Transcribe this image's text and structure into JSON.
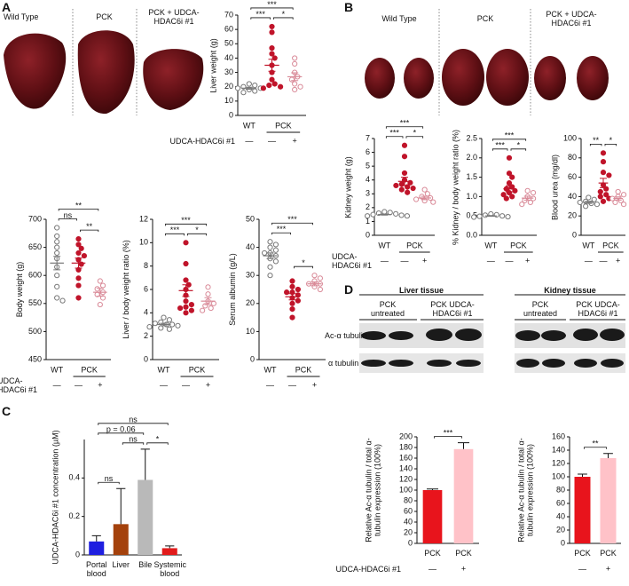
{
  "panel_A": {
    "label": "A",
    "photo_labels": [
      "Wild Type",
      "PCK",
      "PCK + UDCA-HDAC6i #1"
    ]
  },
  "panel_B": {
    "label": "B",
    "photo_labels": [
      "Wild Type",
      "PCK",
      "PCK + UDCA-HDAC6i #1"
    ]
  },
  "panel_C": {
    "label": "C"
  },
  "panel_D": {
    "label": "D",
    "blot_rows": [
      "Ac-α tubulin",
      "α tubulin"
    ],
    "tissues": [
      {
        "title": "Liver tissue",
        "lanes": [
          "PCK untreated",
          "PCK UDCA-HDAC6i #1"
        ]
      },
      {
        "title": "Kidney tissue",
        "lanes": [
          "PCK untreated",
          "PCK UDCA-HDAC6i #1"
        ]
      }
    ]
  },
  "chart_data": [
    {
      "type": "dot",
      "ylabel": "Liver weight (g)",
      "ylim": [
        0,
        70
      ],
      "yticks": [
        0,
        10,
        20,
        30,
        40,
        50,
        60,
        70
      ],
      "treatment_label": "UDCA-HDAC6i #1",
      "groups": [
        {
          "name": "WT",
          "treatment": "—",
          "color": "#777777",
          "filled": false,
          "values": [
            22,
            21,
            20,
            19,
            19,
            18,
            17,
            16
          ],
          "mean": 19,
          "sem": 0.7
        },
        {
          "name": "PCK",
          "treatment": "—",
          "color": "#c0142a",
          "filled": true,
          "values": [
            62,
            58,
            47,
            43,
            40,
            35,
            30,
            25,
            22,
            21,
            20,
            19
          ],
          "mean": 35,
          "sem": 4.2
        },
        {
          "treatment": "+",
          "color": "#d98a98",
          "filled": false,
          "values": [
            40,
            36,
            30,
            27,
            25,
            22,
            20,
            18
          ],
          "mean": 27,
          "sem": 2.7
        }
      ],
      "brackets": [
        {
          "from": 0,
          "to": 1,
          "label": "***"
        },
        {
          "from": 0,
          "to": 2,
          "label": "***"
        },
        {
          "from": 1,
          "to": 2,
          "label": "*"
        }
      ]
    },
    {
      "type": "dot",
      "ylabel": "Body weight (g)",
      "ylim": [
        450,
        700
      ],
      "yticks": [
        450,
        500,
        550,
        600,
        650,
        700
      ],
      "treatment_label": "UDCA-HDAC6i #1",
      "groups": [
        {
          "name": "WT",
          "treatment": "—",
          "color": "#777777",
          "filled": false,
          "values": [
            685,
            670,
            660,
            650,
            640,
            630,
            615,
            600,
            580,
            560,
            555
          ],
          "mean": 622,
          "sem": 12
        },
        {
          "name": "PCK",
          "treatment": "—",
          "color": "#c0142a",
          "filled": true,
          "values": [
            665,
            655,
            648,
            640,
            635,
            628,
            620,
            610,
            595,
            582,
            560
          ],
          "mean": 622,
          "sem": 9
        },
        {
          "treatment": "+",
          "color": "#d98a98",
          "filled": false,
          "values": [
            590,
            582,
            576,
            570,
            566,
            560,
            548
          ],
          "mean": 570,
          "sem": 7
        }
      ],
      "brackets": [
        {
          "from": 0,
          "to": 1,
          "label": "ns"
        },
        {
          "from": 0,
          "to": 2,
          "label": "**"
        },
        {
          "from": 1,
          "to": 2,
          "label": "**"
        }
      ]
    },
    {
      "type": "dot",
      "ylabel": "Liver / body weight ratio (%)",
      "ylim": [
        0,
        12
      ],
      "yticks": [
        0,
        2,
        4,
        6,
        8,
        10,
        12
      ],
      "groups": [
        {
          "name": "WT",
          "treatment": "—",
          "color": "#777777",
          "filled": false,
          "values": [
            3.6,
            3.4,
            3.2,
            3.1,
            3.0,
            3.0,
            2.9,
            2.8,
            2.7,
            2.6
          ],
          "mean": 3.0,
          "sem": 0.1
        },
        {
          "name": "PCK",
          "treatment": "—",
          "color": "#c0142a",
          "filled": true,
          "values": [
            10.0,
            8.2,
            6.8,
            6.4,
            6.0,
            5.5,
            5.0,
            4.7,
            4.5,
            4.4,
            4.2,
            4.0
          ],
          "mean": 5.9,
          "sem": 0.5
        },
        {
          "treatment": "+",
          "color": "#d98a98",
          "filled": false,
          "values": [
            6.2,
            5.6,
            5.0,
            4.8,
            4.6,
            4.4,
            4.2
          ],
          "mean": 5.0,
          "sem": 0.3
        }
      ],
      "brackets": [
        {
          "from": 0,
          "to": 1,
          "label": "***"
        },
        {
          "from": 0,
          "to": 2,
          "label": "***"
        },
        {
          "from": 1,
          "to": 2,
          "label": "*"
        }
      ]
    },
    {
      "type": "dot",
      "ylabel": "Serum albumin (g/L)",
      "ylim": [
        0,
        50
      ],
      "yticks": [
        0,
        10,
        20,
        30,
        40,
        50
      ],
      "groups": [
        {
          "name": "WT",
          "treatment": "—",
          "color": "#777777",
          "filled": false,
          "values": [
            42,
            41,
            40,
            39,
            38,
            38,
            37,
            36,
            35,
            33,
            30
          ],
          "mean": 37,
          "sem": 1
        },
        {
          "name": "PCK",
          "treatment": "—",
          "color": "#c0142a",
          "filled": true,
          "values": [
            28,
            26,
            25,
            24,
            24,
            23,
            22,
            21,
            20,
            18,
            15
          ],
          "mean": 22.4,
          "sem": 1.1
        },
        {
          "treatment": "+",
          "color": "#d98a98",
          "filled": false,
          "values": [
            30,
            29,
            28,
            27,
            27,
            26,
            25
          ],
          "mean": 27,
          "sem": 0.7
        }
      ],
      "brackets": [
        {
          "from": 0,
          "to": 1,
          "label": "***"
        },
        {
          "from": 0,
          "to": 2,
          "label": "***"
        },
        {
          "from": 1,
          "to": 2,
          "label": "*"
        }
      ]
    },
    {
      "type": "dot",
      "ylabel": "Kidney weight (g)",
      "ylim": [
        0,
        7
      ],
      "yticks": [
        0,
        1,
        2,
        3,
        4,
        5,
        6,
        7
      ],
      "treatment_label": "UDCA-HDAC6i #1",
      "groups": [
        {
          "name": "WT",
          "treatment": "—",
          "color": "#777777",
          "filled": false,
          "values": [
            1.7,
            1.65,
            1.6,
            1.55,
            1.5,
            1.45,
            1.4,
            1.4
          ],
          "mean": 1.5,
          "sem": 0.04
        },
        {
          "name": "PCK",
          "treatment": "—",
          "color": "#c0142a",
          "filled": true,
          "values": [
            6.5,
            5.7,
            4.5,
            4.0,
            3.8,
            3.7,
            3.6,
            3.5,
            3.4,
            3.3,
            3.1
          ],
          "mean": 3.9,
          "sem": 0.3
        },
        {
          "treatment": "+",
          "color": "#d98a98",
          "filled": false,
          "values": [
            3.3,
            3.0,
            2.8,
            2.7,
            2.6,
            2.5,
            2.4
          ],
          "mean": 2.7,
          "sem": 0.12
        }
      ],
      "brackets": [
        {
          "from": 0,
          "to": 1,
          "label": "***"
        },
        {
          "from": 0,
          "to": 2,
          "label": "***"
        },
        {
          "from": 1,
          "to": 2,
          "label": "*"
        }
      ]
    },
    {
      "type": "dot",
      "ylabel": "% Kidney / body weight ratio (%)",
      "ylim": [
        0,
        2.5
      ],
      "yticks": [
        {
          "value": 0,
          "label": "0.0"
        },
        0.5,
        {
          "value": 1,
          "label": "1.0"
        },
        1.5,
        {
          "value": 2,
          "label": "2.0"
        },
        2.5
      ],
      "groups": [
        {
          "name": "WT",
          "treatment": "—",
          "color": "#777777",
          "filled": false,
          "values": [
            0.55,
            0.53,
            0.52,
            0.5,
            0.49,
            0.48,
            0.47
          ],
          "mean": 0.5,
          "sem": 0.01
        },
        {
          "name": "PCK",
          "treatment": "—",
          "color": "#c0142a",
          "filled": true,
          "values": [
            2.0,
            1.6,
            1.5,
            1.35,
            1.25,
            1.2,
            1.15,
            1.1,
            1.05,
            1.0,
            0.95
          ],
          "mean": 1.2,
          "sem": 0.08
        },
        {
          "treatment": "+",
          "color": "#d98a98",
          "filled": false,
          "values": [
            1.15,
            1.1,
            1.0,
            0.95,
            0.9,
            0.85,
            0.8
          ],
          "mean": 0.96,
          "sem": 0.05
        }
      ],
      "brackets": [
        {
          "from": 0,
          "to": 1,
          "label": "***"
        },
        {
          "from": 0,
          "to": 2,
          "label": "***"
        },
        {
          "from": 1,
          "to": 2,
          "label": "*"
        }
      ]
    },
    {
      "type": "dot",
      "ylabel": "Blood urea (mg/dl)",
      "ylim": [
        0,
        100
      ],
      "yticks": [
        0,
        20,
        40,
        60,
        80,
        100
      ],
      "groups": [
        {
          "name": "WT",
          "treatment": "—",
          "color": "#777777",
          "filled": false,
          "values": [
            39,
            37,
            35,
            34,
            33,
            32,
            30
          ],
          "mean": 34,
          "sem": 1.1
        },
        {
          "name": "PCK",
          "treatment": "—",
          "color": "#c0142a",
          "filled": true,
          "values": [
            85,
            76,
            65,
            62,
            52,
            48,
            45,
            42,
            40,
            38,
            35
          ],
          "mean": 54,
          "sem": 4.8
        },
        {
          "treatment": "+",
          "color": "#d98a98",
          "filled": false,
          "values": [
            45,
            42,
            40,
            38,
            36,
            34,
            32
          ],
          "mean": 38,
          "sem": 1.7
        }
      ],
      "brackets": [
        {
          "from": 0,
          "to": 1,
          "label": "**"
        },
        {
          "from": 1,
          "to": 2,
          "label": "*"
        }
      ]
    },
    {
      "type": "bar",
      "ylabel": "UDCA-HDAC6i #1 concentration (µM)",
      "ylim": [
        0,
        0.6
      ],
      "yticks": [
        0,
        0.2,
        0.4
      ],
      "categories": [
        "Portal blood",
        "Liver",
        "Bile",
        "Systemic blood"
      ],
      "values": [
        0.07,
        0.16,
        0.39,
        0.035
      ],
      "errors": [
        0.03,
        0.185,
        0.16,
        0.012
      ],
      "colors": [
        "#1f1fe0",
        "#a4410c",
        "#b9b9b9",
        "#e21b1b"
      ],
      "brackets": [
        {
          "from": 0,
          "to": 1,
          "label": "ns"
        },
        {
          "from": 0,
          "to": 2,
          "label": "p = 0.06"
        },
        {
          "from": 1,
          "to": 2,
          "label": "ns"
        },
        {
          "from": 0,
          "to": 3,
          "label": "ns"
        },
        {
          "from": 2,
          "to": 3,
          "label": "*"
        }
      ]
    },
    {
      "type": "bar",
      "ylabel": "Relative Ac-α tubulin / total α-tubulin expression (100%)",
      "ylim": [
        0,
        200
      ],
      "yticks": [
        0,
        20,
        40,
        60,
        80,
        100,
        120,
        140,
        160,
        180,
        200
      ],
      "categories": [
        "PCK",
        "PCK"
      ],
      "treatments": [
        "—",
        "+"
      ],
      "treatment_label": "UDCA-HDAC6i #1",
      "values": [
        100,
        177
      ],
      "errors": [
        2,
        12
      ],
      "colors": [
        "#e8141c",
        "#ffc2c8"
      ],
      "brackets": [
        {
          "from": 0,
          "to": 1,
          "label": "***"
        }
      ]
    },
    {
      "type": "bar",
      "ylabel": "Relative Ac-α tubulin / total α-tubulin expression (100%)",
      "ylim": [
        0,
        160
      ],
      "yticks": [
        0,
        20,
        40,
        60,
        80,
        100,
        120,
        140,
        160
      ],
      "categories": [
        "PCK",
        "PCK"
      ],
      "treatments": [
        "—",
        "+"
      ],
      "values": [
        100,
        128
      ],
      "errors": [
        4,
        7
      ],
      "colors": [
        "#e8141c",
        "#ffc2c8"
      ],
      "brackets": [
        {
          "from": 0,
          "to": 1,
          "label": "**"
        }
      ]
    }
  ]
}
